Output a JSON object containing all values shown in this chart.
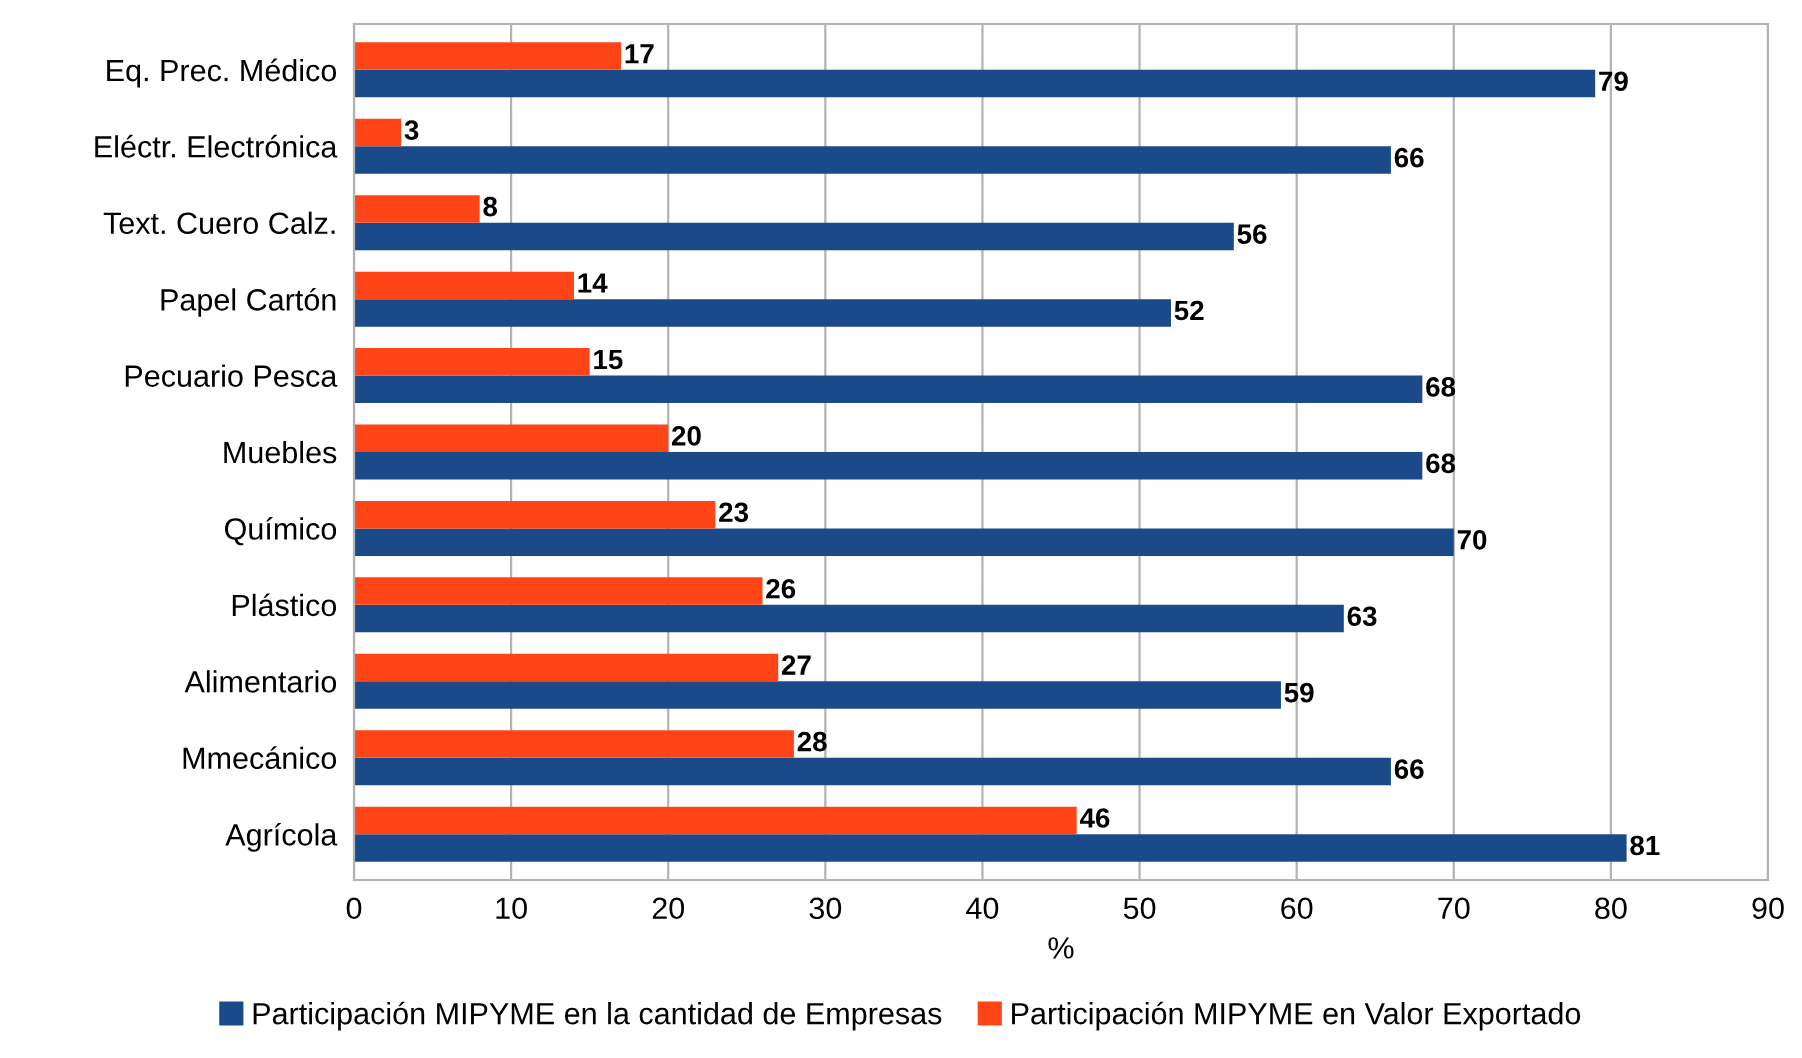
{
  "chart_data": {
    "type": "bar",
    "orientation": "horizontal",
    "xlabel": "%",
    "categories": [
      "Eq. Prec. Médico",
      "Eléctr. Electrónica",
      "Text. Cuero Calz.",
      "Papel Cartón",
      "Pecuario Pesca",
      "Muebles",
      "Químico",
      "Plástico",
      "Alimentario",
      "Mmecánico",
      "Agrícola"
    ],
    "series": [
      {
        "name": "Participación MIPYME en la cantidad de Empresas",
        "color": "#1a4a8a",
        "values": [
          79,
          66,
          56,
          52,
          68,
          68,
          70,
          63,
          59,
          66,
          81
        ]
      },
      {
        "name": "Participación MIPYME en Valor Exportado",
        "color": "#ff4517",
        "values": [
          17,
          3,
          8,
          14,
          15,
          20,
          23,
          26,
          27,
          28,
          46
        ]
      }
    ],
    "xlim": [
      0,
      90
    ],
    "xticks": [
      0,
      10,
      20,
      30,
      40,
      50,
      60,
      70,
      80,
      90
    ],
    "grid": "x",
    "legend": "bottom",
    "data_labels": true
  }
}
